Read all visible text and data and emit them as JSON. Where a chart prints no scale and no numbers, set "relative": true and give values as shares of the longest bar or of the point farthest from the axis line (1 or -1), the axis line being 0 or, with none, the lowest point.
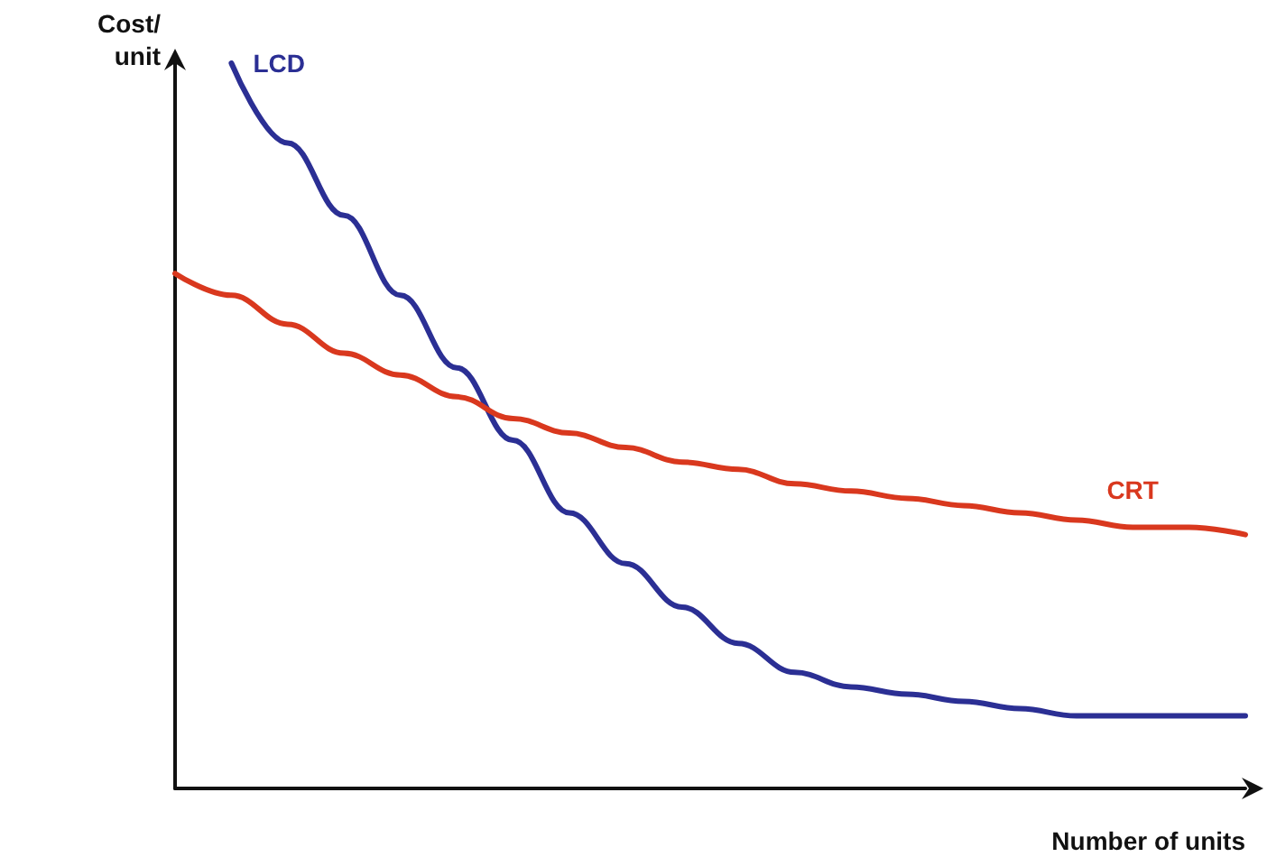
{
  "chart_data": {
    "type": "line",
    "relative": true,
    "xlabel": "Number of units",
    "ylabel": "Cost/ unit",
    "line_style": "solid",
    "categories": [
      null,
      null,
      null,
      null,
      null,
      null,
      null,
      null,
      null,
      null,
      null,
      null,
      null,
      null,
      null,
      null,
      null,
      null,
      null,
      null
    ],
    "series": [
      {
        "name": "LCD",
        "color": "#2b2f94",
        "values": [
          null,
          1.0,
          0.89,
          0.79,
          0.68,
          0.58,
          0.48,
          0.38,
          0.31,
          0.25,
          0.2,
          0.16,
          0.14,
          0.13,
          0.12,
          0.11,
          0.1,
          0.1,
          0.1,
          0.1
        ]
      },
      {
        "name": "CRT",
        "color": "#d9381e",
        "values": [
          0.71,
          0.68,
          0.64,
          0.6,
          0.57,
          0.54,
          0.51,
          0.49,
          0.47,
          0.45,
          0.44,
          0.42,
          0.41,
          0.4,
          0.39,
          0.38,
          0.37,
          0.36,
          0.36,
          0.35
        ]
      }
    ]
  }
}
